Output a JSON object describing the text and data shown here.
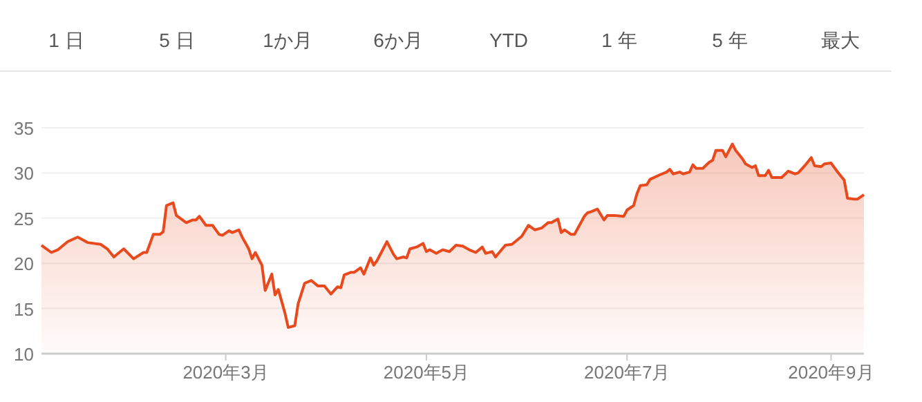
{
  "chart_data": {
    "type": "area",
    "annotations": [
      "1 日",
      "5 日",
      "1か月",
      "6か月",
      "YTD",
      "1 年",
      "5 年",
      "最大"
    ],
    "x": [
      "2020-01-05",
      "2020-01-08",
      "2020-01-10",
      "2020-01-13",
      "2020-01-16",
      "2020-01-19",
      "2020-01-23",
      "2020-01-25",
      "2020-01-27",
      "2020-01-30",
      "2020-02-02",
      "2020-02-05",
      "2020-02-06",
      "2020-02-08",
      "2020-02-10",
      "2020-02-11",
      "2020-02-12",
      "2020-02-14",
      "2020-02-15",
      "2020-02-18",
      "2020-02-20",
      "2020-02-21",
      "2020-02-22",
      "2020-02-24",
      "2020-02-26",
      "2020-02-28",
      "2020-02-29",
      "2020-03-02",
      "2020-03-03",
      "2020-03-05",
      "2020-03-06",
      "2020-03-08",
      "2020-03-09",
      "2020-03-10",
      "2020-03-12",
      "2020-03-13",
      "2020-03-15",
      "2020-03-16",
      "2020-03-17",
      "2020-03-19",
      "2020-03-20",
      "2020-03-22",
      "2020-03-23",
      "2020-03-25",
      "2020-03-27",
      "2020-03-29",
      "2020-03-31",
      "2020-04-02",
      "2020-04-04",
      "2020-04-05",
      "2020-04-06",
      "2020-04-08",
      "2020-04-09",
      "2020-04-11",
      "2020-04-12",
      "2020-04-14",
      "2020-04-15",
      "2020-04-16",
      "2020-04-18",
      "2020-04-19",
      "2020-04-21",
      "2020-04-22",
      "2020-04-24",
      "2020-04-25",
      "2020-04-26",
      "2020-04-28",
      "2020-04-30",
      "2020-05-01",
      "2020-05-02",
      "2020-05-04",
      "2020-05-06",
      "2020-05-08",
      "2020-05-10",
      "2020-05-12",
      "2020-05-14",
      "2020-05-16",
      "2020-05-18",
      "2020-05-19",
      "2020-05-21",
      "2020-05-22",
      "2020-05-25",
      "2020-05-27",
      "2020-05-30",
      "2020-06-01",
      "2020-06-03",
      "2020-06-05",
      "2020-06-07",
      "2020-06-08",
      "2020-06-10",
      "2020-06-11",
      "2020-06-12",
      "2020-06-14",
      "2020-06-15",
      "2020-06-18",
      "2020-06-19",
      "2020-06-20",
      "2020-06-22",
      "2020-06-24",
      "2020-06-25",
      "2020-06-27",
      "2020-06-30",
      "2020-07-01",
      "2020-07-03",
      "2020-07-04",
      "2020-07-05",
      "2020-07-07",
      "2020-07-08",
      "2020-07-11",
      "2020-07-13",
      "2020-07-14",
      "2020-07-15",
      "2020-07-17",
      "2020-07-18",
      "2020-07-20",
      "2020-07-21",
      "2020-07-22",
      "2020-07-24",
      "2020-07-26",
      "2020-07-27",
      "2020-07-28",
      "2020-07-30",
      "2020-07-31",
      "2020-08-02",
      "2020-08-03",
      "2020-08-05",
      "2020-08-06",
      "2020-08-08",
      "2020-08-09",
      "2020-08-10",
      "2020-08-12",
      "2020-08-13",
      "2020-08-14",
      "2020-08-16",
      "2020-08-17",
      "2020-08-19",
      "2020-08-21",
      "2020-08-22",
      "2020-08-24",
      "2020-08-26",
      "2020-08-27",
      "2020-08-29",
      "2020-08-30",
      "2020-09-01",
      "2020-09-03",
      "2020-09-05",
      "2020-09-06",
      "2020-09-08",
      "2020-09-09",
      "2020-09-11"
    ],
    "series": [
      {
        "color": "#e8491d",
        "values": [
          22.0,
          21.2,
          21.5,
          22.4,
          22.9,
          22.3,
          22.1,
          21.6,
          20.7,
          21.6,
          20.5,
          21.2,
          21.2,
          23.2,
          23.2,
          23.5,
          26.4,
          26.7,
          25.3,
          24.5,
          24.8,
          24.8,
          25.2,
          24.2,
          24.2,
          23.2,
          23.1,
          23.6,
          23.4,
          23.7,
          22.9,
          21.6,
          20.5,
          21.2,
          19.8,
          17.0,
          18.8,
          16.5,
          17.1,
          14.5,
          12.9,
          13.1,
          15.5,
          17.8,
          18.1,
          17.5,
          17.5,
          16.6,
          17.4,
          17.3,
          18.7,
          19.0,
          19.0,
          19.5,
          18.8,
          20.6,
          19.8,
          20.3,
          21.7,
          22.4,
          21.0,
          20.5,
          20.7,
          20.6,
          21.6,
          21.8,
          22.2,
          21.3,
          21.5,
          21.1,
          21.5,
          21.3,
          22.0,
          21.9,
          21.5,
          21.2,
          21.8,
          21.1,
          21.3,
          20.7,
          22.0,
          22.1,
          23.0,
          24.2,
          23.7,
          23.9,
          24.5,
          24.5,
          24.9,
          23.4,
          23.7,
          23.2,
          23.2,
          25.2,
          25.6,
          25.7,
          26.0,
          24.8,
          25.3,
          25.3,
          25.2,
          25.9,
          26.4,
          27.7,
          28.6,
          28.7,
          29.3,
          29.8,
          30.1,
          30.4,
          29.9,
          30.1,
          29.9,
          30.1,
          30.9,
          30.5,
          30.5,
          31.2,
          31.4,
          32.5,
          32.5,
          31.8,
          33.2,
          32.5,
          31.6,
          31.0,
          30.6,
          30.8,
          29.7,
          29.7,
          30.3,
          29.5,
          29.5,
          29.5,
          30.2,
          29.9,
          30.0,
          30.8,
          31.7,
          30.8,
          30.7,
          31.0,
          31.1,
          30.1,
          29.2,
          27.2,
          27.1,
          27.1,
          27.6
        ]
      }
    ],
    "xlim": [
      "2020-01-05",
      "2020-09-11"
    ],
    "xticks": [
      {
        "value": "2020-03-01",
        "label": "2020年3月"
      },
      {
        "value": "2020-05-01",
        "label": "2020年5月"
      },
      {
        "value": "2020-07-01",
        "label": "2020年7月"
      },
      {
        "value": "2020-09-01",
        "label": "2020年9月"
      }
    ],
    "ylim": [
      10,
      35
    ],
    "yticks": [
      10,
      15,
      20,
      25,
      30,
      35
    ],
    "grid": "y"
  }
}
